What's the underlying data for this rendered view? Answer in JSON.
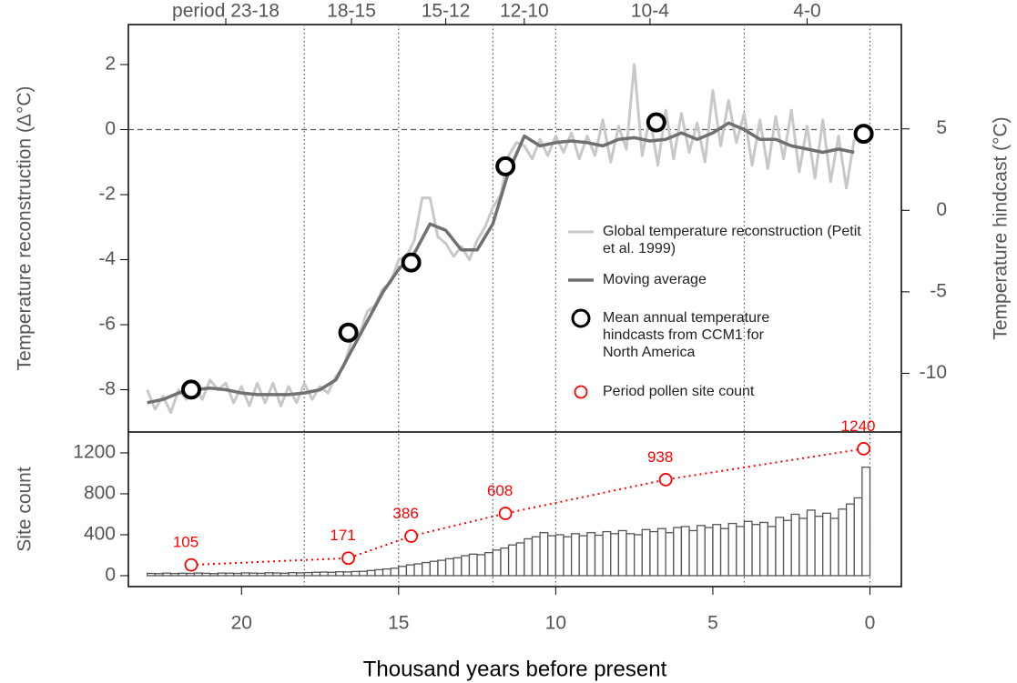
{
  "chart_data": [
    {
      "type": "line",
      "periods": [
        {
          "label": "period 23-18",
          "start": 23,
          "end": 18
        },
        {
          "label": "18-15",
          "start": 18,
          "end": 15
        },
        {
          "label": "15-12",
          "start": 15,
          "end": 12
        },
        {
          "label": "12-10",
          "start": 12,
          "end": 10
        },
        {
          "label": "10-4",
          "start": 10,
          "end": 4
        },
        {
          "label": "4-0",
          "start": 4,
          "end": 0
        }
      ],
      "ylabel": "Temperature reconstruction (Δ°C)",
      "y2label": "Temperature hindcast (°C)",
      "xlim": [
        23.6,
        -1.0
      ],
      "ylim": [
        -9.3,
        3.23
      ],
      "yticks": [
        2,
        0,
        -2,
        -4,
        -6,
        -8
      ],
      "y2lim": [
        -13.6,
        11.4
      ],
      "y2ticks": [
        5,
        0,
        -5,
        -10
      ],
      "hline": 0,
      "series": [
        {
          "name": "Global temperature reconstruction (Petit et al. 1999)",
          "color": "#c8c8c8",
          "x": [
            23,
            22.75,
            22.5,
            22.25,
            22,
            21.75,
            21.5,
            21.25,
            21,
            20.75,
            20.5,
            20.25,
            20,
            19.75,
            19.5,
            19.25,
            19,
            18.75,
            18.5,
            18.25,
            18,
            17.75,
            17.5,
            17.25,
            17,
            16.75,
            16.5,
            16.25,
            16,
            15.75,
            15.5,
            15.25,
            15,
            14.75,
            14.5,
            14.25,
            14,
            13.75,
            13.5,
            13.25,
            13,
            12.75,
            12.5,
            12.25,
            12,
            11.75,
            11.5,
            11.25,
            11,
            10.75,
            10.5,
            10.25,
            10,
            9.75,
            9.5,
            9.25,
            9,
            8.75,
            8.5,
            8.25,
            8,
            7.75,
            7.5,
            7.25,
            7,
            6.75,
            6.5,
            6.25,
            6,
            5.75,
            5.5,
            5.25,
            5,
            4.75,
            4.5,
            4.25,
            4,
            3.75,
            3.5,
            3.25,
            3,
            2.75,
            2.5,
            2.25,
            2,
            1.75,
            1.5,
            1.25,
            1,
            0.75,
            0.5
          ],
          "values": [
            -8.0,
            -8.6,
            -8.2,
            -8.7,
            -8.0,
            -8.3,
            -7.8,
            -8.3,
            -7.7,
            -8.0,
            -7.8,
            -8.4,
            -7.9,
            -8.5,
            -7.8,
            -8.4,
            -7.8,
            -8.5,
            -7.9,
            -8.4,
            -7.8,
            -8.3,
            -7.9,
            -8.1,
            -7.6,
            -7.3,
            -6.5,
            -6.3,
            -5.6,
            -5.4,
            -4.9,
            -4.7,
            -4.0,
            -3.9,
            -3.4,
            -2.1,
            -2.1,
            -3.3,
            -3.5,
            -3.9,
            -3.6,
            -4.0,
            -3.4,
            -3.0,
            -2.4,
            -2.0,
            -0.8,
            -0.4,
            -0.5,
            -0.9,
            -0.3,
            -0.8,
            -0.2,
            -0.7,
            -0.1,
            -0.9,
            -0.2,
            -0.8,
            0.3,
            -1.0,
            0.1,
            -0.6,
            2.0,
            -0.8,
            0.4,
            -1.1,
            0.6,
            -0.9,
            0.5,
            -0.7,
            0.2,
            -1.0,
            1.2,
            -0.5,
            0.9,
            -0.4,
            0.5,
            -1.1,
            0.3,
            -1.2,
            0.4,
            -0.9,
            0.6,
            -1.3,
            0.1,
            -1.5,
            0.3,
            -1.6,
            -0.2,
            -1.8,
            -0.3
          ]
        },
        {
          "name": "Moving average",
          "color": "#707070",
          "x": [
            23,
            22.5,
            22,
            21.5,
            21,
            20.5,
            20,
            19.5,
            19,
            18.5,
            18,
            17.5,
            17,
            16.5,
            16,
            15.5,
            15,
            14.5,
            14,
            13.5,
            13,
            12.5,
            12,
            11.5,
            11,
            10.5,
            10,
            9.5,
            9,
            8.5,
            8,
            7.5,
            7,
            6.5,
            6,
            5.5,
            5,
            4.5,
            4,
            3.5,
            3,
            2.5,
            2,
            1.5,
            1,
            0.5
          ],
          "values": [
            -8.4,
            -8.3,
            -8.1,
            -8.0,
            -7.95,
            -8.0,
            -8.1,
            -8.15,
            -8.15,
            -8.15,
            -8.1,
            -8.0,
            -7.7,
            -6.8,
            -5.9,
            -5.0,
            -4.3,
            -3.8,
            -2.9,
            -3.1,
            -3.7,
            -3.7,
            -2.9,
            -1.3,
            -0.2,
            -0.5,
            -0.4,
            -0.35,
            -0.4,
            -0.5,
            -0.3,
            -0.25,
            -0.35,
            -0.3,
            -0.1,
            -0.3,
            -0.1,
            0.2,
            0.0,
            -0.3,
            -0.3,
            -0.5,
            -0.6,
            -0.7,
            -0.6,
            -0.7
          ]
        },
        {
          "name": "Mean annual temperature hindcasts from CCM1 for North America",
          "color": "#000000",
          "axis": "y2",
          "x": [
            21.6,
            16.6,
            14.6,
            11.6,
            6.8,
            0.2
          ],
          "values": [
            -11.0,
            -7.5,
            -3.2,
            2.7,
            5.4,
            4.7
          ]
        }
      ]
    },
    {
      "type": "histogram",
      "ylabel": "Site count",
      "xlabel": "Thousand years before present",
      "xlim": [
        23.6,
        -1.0
      ],
      "xticks": [
        20,
        15,
        10,
        5,
        0
      ],
      "ylim": [
        -107,
        1404
      ],
      "yticks": [
        0,
        400,
        800,
        1200
      ],
      "bar_color": "#555555",
      "bins": [
        23,
        22.75,
        22.5,
        22.25,
        22,
        21.75,
        21.5,
        21.25,
        21,
        20.75,
        20.5,
        20.25,
        20,
        19.75,
        19.5,
        19.25,
        19,
        18.75,
        18.5,
        18.25,
        18,
        17.75,
        17.5,
        17.25,
        17,
        16.75,
        16.5,
        16.25,
        16,
        15.75,
        15.5,
        15.25,
        15,
        14.75,
        14.5,
        14.25,
        14,
        13.75,
        13.5,
        13.25,
        13,
        12.75,
        12.5,
        12.25,
        12,
        11.75,
        11.5,
        11.25,
        11,
        10.75,
        10.5,
        10.25,
        10,
        9.75,
        9.5,
        9.25,
        9,
        8.75,
        8.5,
        8.25,
        8,
        7.75,
        7.5,
        7.25,
        7,
        6.75,
        6.5,
        6.25,
        6,
        5.75,
        5.5,
        5.25,
        5,
        4.75,
        4.5,
        4.25,
        4,
        3.75,
        3.5,
        3.25,
        3,
        2.75,
        2.5,
        2.25,
        2,
        1.75,
        1.5,
        1.25,
        1,
        0.75,
        0.5,
        0.25,
        0
      ],
      "values": [
        22,
        20,
        25,
        21,
        24,
        22,
        26,
        23,
        20,
        25,
        24,
        22,
        27,
        25,
        23,
        28,
        26,
        24,
        29,
        27,
        30,
        33,
        35,
        32,
        38,
        36,
        40,
        42,
        50,
        58,
        65,
        72,
        90,
        105,
        115,
        128,
        140,
        150,
        165,
        175,
        195,
        210,
        205,
        225,
        250,
        270,
        300,
        320,
        360,
        380,
        420,
        390,
        400,
        380,
        410,
        390,
        420,
        395,
        430,
        410,
        440,
        410,
        400,
        450,
        430,
        460,
        420,
        470,
        480,
        440,
        490,
        470,
        500,
        460,
        510,
        480,
        530,
        500,
        520,
        480,
        570,
        540,
        600,
        560,
        640,
        580,
        610,
        560,
        650,
        700,
        760,
        1060
      ],
      "series": [
        {
          "name": "Period pollen site count",
          "color": "#ff0000",
          "x": [
            21.6,
            16.6,
            14.6,
            11.6,
            6.5,
            0.2
          ],
          "values": [
            105,
            171,
            386,
            608,
            938,
            1240
          ]
        }
      ]
    }
  ]
}
